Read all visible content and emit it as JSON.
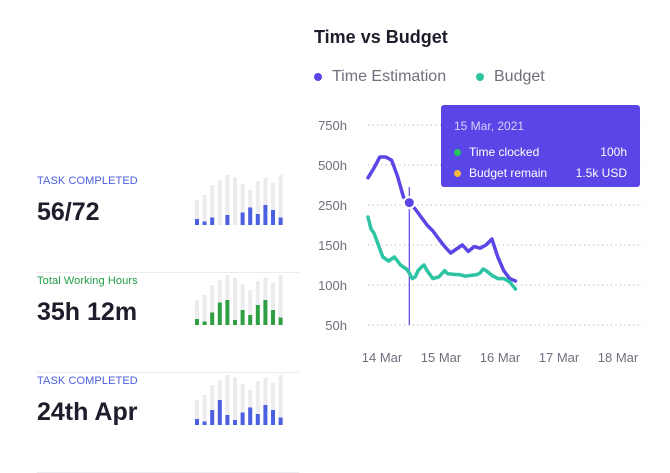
{
  "stats": [
    {
      "label": "TASK COMPLETED",
      "label_color": "#4b5fe0",
      "value": "56/72",
      "bar_color": "#4b5fe0",
      "bars": [
        {
          "total": 0.5,
          "fill": 0.12
        },
        {
          "total": 0.6,
          "fill": 0.07
        },
        {
          "total": 0.8,
          "fill": 0.15
        },
        {
          "total": 0.9,
          "fill": 0.0
        },
        {
          "total": 1.0,
          "fill": 0.2
        },
        {
          "total": 0.95,
          "fill": 0.0
        },
        {
          "total": 0.82,
          "fill": 0.25
        },
        {
          "total": 0.7,
          "fill": 0.35
        },
        {
          "total": 0.88,
          "fill": 0.22
        },
        {
          "total": 0.95,
          "fill": 0.4
        },
        {
          "total": 0.85,
          "fill": 0.3
        },
        {
          "total": 1.0,
          "fill": 0.15
        }
      ]
    },
    {
      "label": "Total Working Hours",
      "label_color": "#1f9d45",
      "value": "35h 12m",
      "bar_color": "#2ea043",
      "bars": [
        {
          "total": 0.5,
          "fill": 0.12
        },
        {
          "total": 0.6,
          "fill": 0.07
        },
        {
          "total": 0.8,
          "fill": 0.25
        },
        {
          "total": 0.9,
          "fill": 0.45
        },
        {
          "total": 1.0,
          "fill": 0.5
        },
        {
          "total": 0.95,
          "fill": 0.1
        },
        {
          "total": 0.82,
          "fill": 0.3
        },
        {
          "total": 0.7,
          "fill": 0.2
        },
        {
          "total": 0.88,
          "fill": 0.4
        },
        {
          "total": 0.95,
          "fill": 0.5
        },
        {
          "total": 0.85,
          "fill": 0.3
        },
        {
          "total": 1.0,
          "fill": 0.15
        }
      ]
    },
    {
      "label": "TASK COMPLETED",
      "label_color": "#4b5fe0",
      "value": "24th Apr",
      "bar_color": "#4b5fe0",
      "bars": [
        {
          "total": 0.5,
          "fill": 0.12
        },
        {
          "total": 0.6,
          "fill": 0.07
        },
        {
          "total": 0.8,
          "fill": 0.3
        },
        {
          "total": 0.9,
          "fill": 0.5
        },
        {
          "total": 1.0,
          "fill": 0.2
        },
        {
          "total": 0.95,
          "fill": 0.1
        },
        {
          "total": 0.82,
          "fill": 0.25
        },
        {
          "total": 0.7,
          "fill": 0.35
        },
        {
          "total": 0.88,
          "fill": 0.22
        },
        {
          "total": 0.95,
          "fill": 0.4
        },
        {
          "total": 0.85,
          "fill": 0.3
        },
        {
          "total": 1.0,
          "fill": 0.15
        }
      ]
    }
  ],
  "chart_data": {
    "type": "line",
    "title": "Time vs Budget",
    "xlabel": "",
    "ylabel": "",
    "x_ticks": [
      "14 Mar",
      "15 Mar",
      "16 Mar",
      "17 Mar",
      "18 Mar"
    ],
    "y_ticks": [
      "750h",
      "500h",
      "250h",
      "150h",
      "100h",
      "50h"
    ],
    "y_scale": "categorical-levels",
    "grid": true,
    "legend_position": "top-left",
    "series": [
      {
        "name": "Time Estimation",
        "color": "#5a45e6",
        "points": [
          [
            14.0,
            420
          ],
          [
            14.1,
            480
          ],
          [
            14.2,
            550
          ],
          [
            14.3,
            550
          ],
          [
            14.4,
            530
          ],
          [
            14.5,
            430
          ],
          [
            14.6,
            300
          ],
          [
            14.7,
            265
          ],
          [
            14.8,
            240
          ],
          [
            14.9,
            220
          ],
          [
            15.0,
            200
          ],
          [
            15.1,
            185
          ],
          [
            15.2,
            165
          ],
          [
            15.3,
            148
          ],
          [
            15.4,
            140
          ],
          [
            15.5,
            145
          ],
          [
            15.6,
            150
          ],
          [
            15.7,
            142
          ],
          [
            15.8,
            148
          ],
          [
            15.9,
            146
          ],
          [
            16.0,
            150
          ],
          [
            16.1,
            165
          ],
          [
            16.2,
            135
          ],
          [
            16.3,
            118
          ],
          [
            16.4,
            108
          ],
          [
            16.5,
            105
          ]
        ]
      },
      {
        "name": "Budget",
        "color": "#2cc4a3",
        "points": [
          [
            14.0,
            220
          ],
          [
            14.05,
            190
          ],
          [
            14.1,
            180
          ],
          [
            14.15,
            160
          ],
          [
            14.25,
            135
          ],
          [
            14.35,
            130
          ],
          [
            14.45,
            135
          ],
          [
            14.5,
            130
          ],
          [
            14.55,
            125
          ],
          [
            14.65,
            120
          ],
          [
            14.7,
            115
          ],
          [
            14.75,
            108
          ],
          [
            14.8,
            110
          ],
          [
            14.85,
            118
          ],
          [
            14.9,
            122
          ],
          [
            14.95,
            125
          ],
          [
            15.0,
            118
          ],
          [
            15.1,
            108
          ],
          [
            15.2,
            110
          ],
          [
            15.3,
            118
          ],
          [
            15.35,
            114
          ],
          [
            15.5,
            113
          ],
          [
            15.55,
            113
          ],
          [
            15.65,
            111
          ],
          [
            15.75,
            112
          ],
          [
            15.85,
            113
          ],
          [
            15.9,
            115
          ],
          [
            15.95,
            120
          ],
          [
            16.0,
            118
          ],
          [
            16.1,
            112
          ],
          [
            16.2,
            108
          ],
          [
            16.3,
            108
          ],
          [
            16.4,
            104
          ],
          [
            16.5,
            95
          ]
        ]
      }
    ],
    "highlight": {
      "x": 14.7,
      "series": "Time Estimation"
    },
    "tooltip": {
      "date": "15 Mar, 2021",
      "rows": [
        {
          "label": "Time clocked",
          "value": "100h",
          "color": "#22c55e"
        },
        {
          "label": "Budget remain",
          "value": "1.5k USD",
          "color": "#f5b942"
        }
      ]
    }
  }
}
